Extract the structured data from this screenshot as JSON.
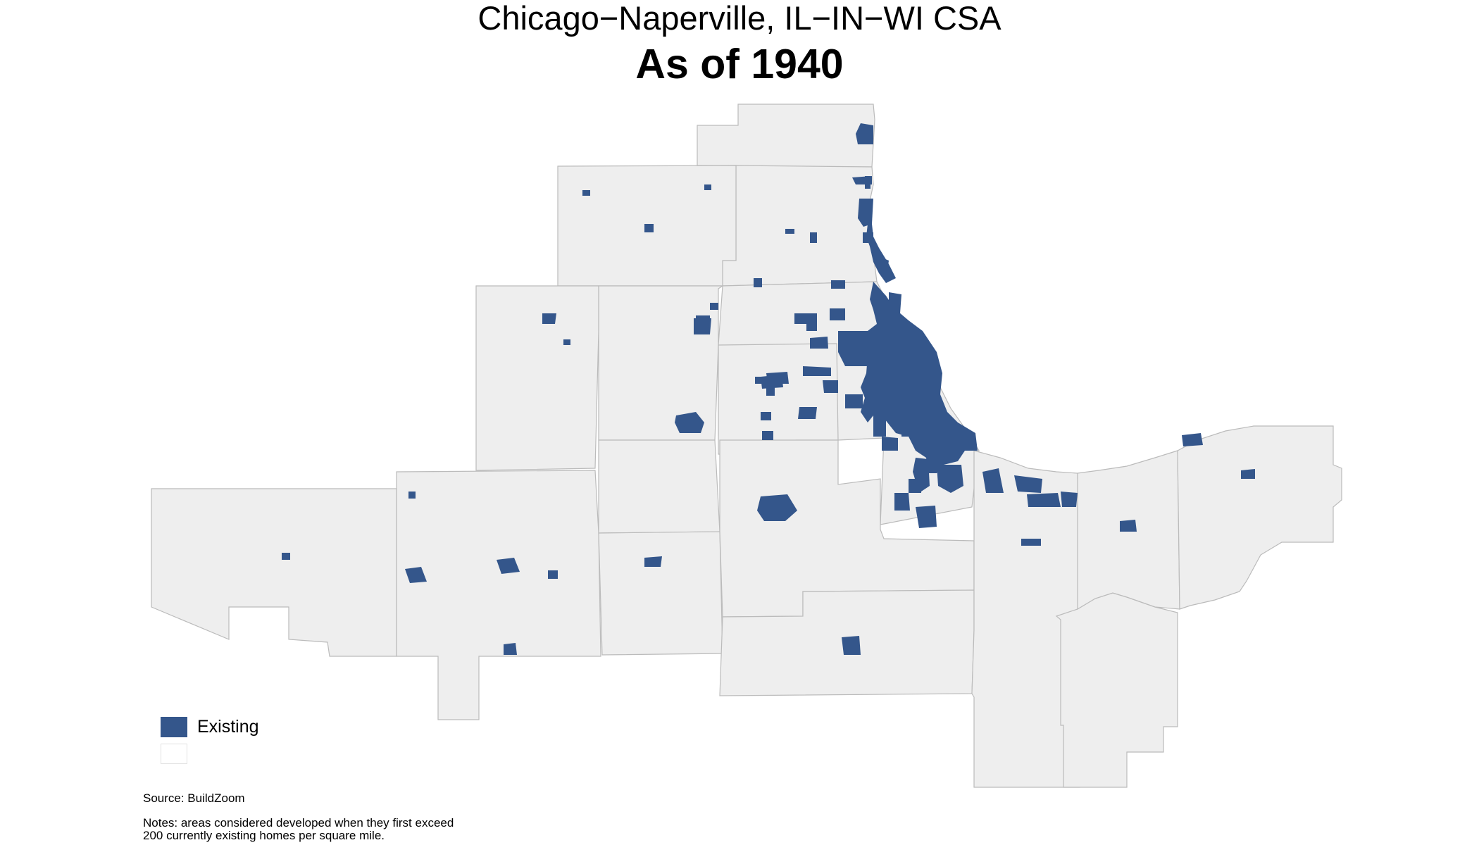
{
  "header": {
    "title": "Chicago−Naperville, IL−IN−WI CSA",
    "subtitle": "As of 1940"
  },
  "map": {
    "land_color": "#eeeeee",
    "border_color": "#bbbbbb",
    "developed_color": "#34568b",
    "lake_color": "#ffffff"
  },
  "legend": {
    "items": [
      {
        "label": "Existing",
        "color": "#34568b"
      },
      {
        "label": "",
        "color": "#ffffff"
      }
    ]
  },
  "footer": {
    "source": "Source: BuildZoom",
    "notes_line1": "Notes: areas considered developed when they first exceed",
    "notes_line2": "200 currently existing homes per square mile."
  }
}
